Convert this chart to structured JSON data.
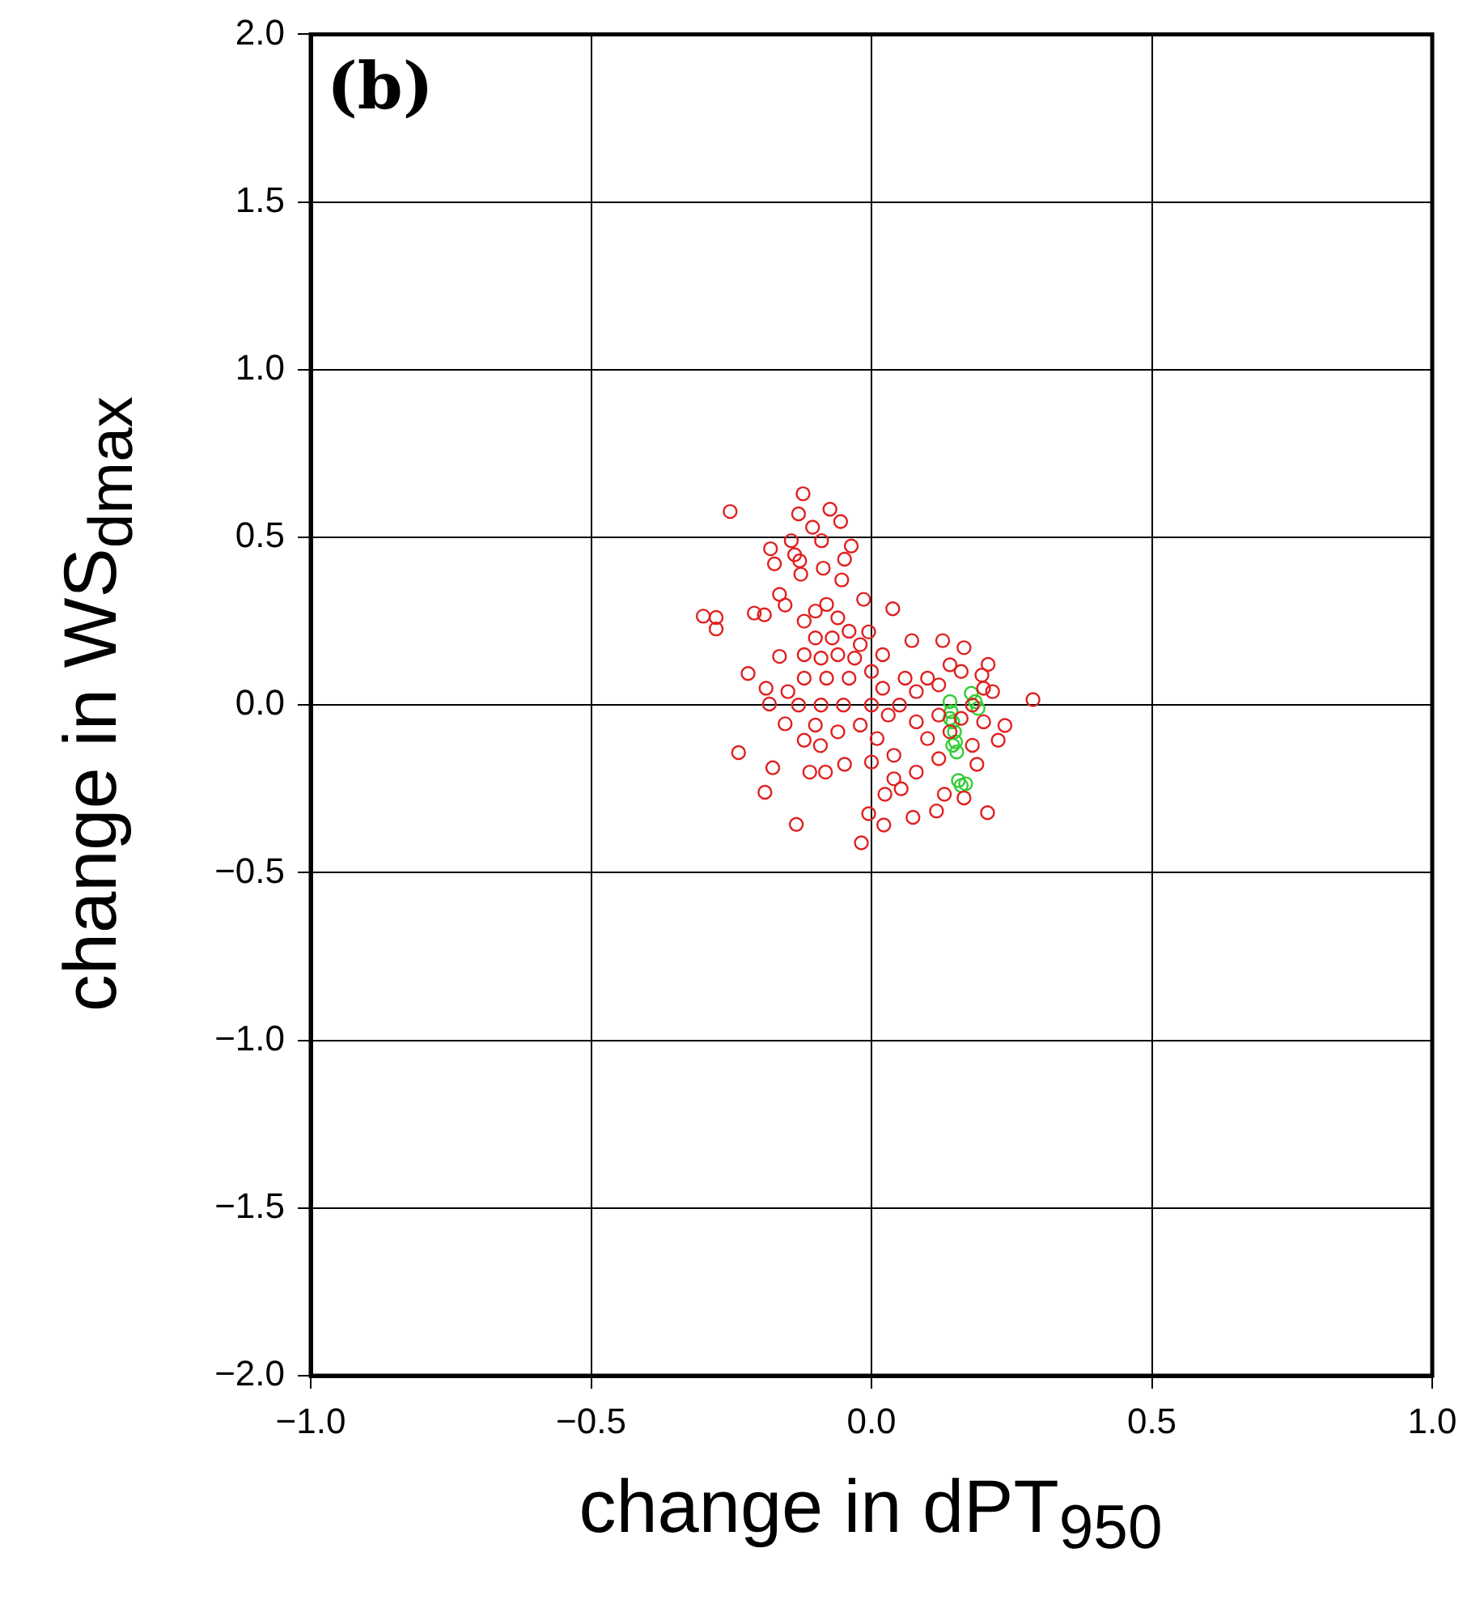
{
  "chart_data": {
    "type": "scatter",
    "xlabel": "change in dPT$_{950}$",
    "ylabel": "change in WS$_{dmax}$",
    "annotations": [
      "(b)"
    ],
    "xlim": [
      -1,
      1
    ],
    "ylim": [
      -2,
      2
    ],
    "xticks": [
      {
        "value": -1,
        "label": "−1.0"
      },
      {
        "value": -0.5,
        "label": "−0.5"
      },
      {
        "value": 0,
        "label": "0.0"
      },
      {
        "value": 0.5,
        "label": "0.5"
      },
      {
        "value": 1,
        "label": "1.0"
      }
    ],
    "yticks": [
      {
        "value": -2,
        "label": "−2.0"
      },
      {
        "value": -1.5,
        "label": "−1.5"
      },
      {
        "value": -1,
        "label": "−1.0"
      },
      {
        "value": -0.5,
        "label": "−0.5"
      },
      {
        "value": 0,
        "label": "0.0"
      },
      {
        "value": 0.5,
        "label": "0.5"
      },
      {
        "value": 1,
        "label": "1.0"
      },
      {
        "value": 1.5,
        "label": "1.5"
      },
      {
        "value": 2,
        "label": "2.0"
      }
    ],
    "grid": true,
    "legend": false,
    "marker": "circle",
    "series": [
      {
        "color": "#e02020",
        "x": [
          -0.122,
          -0.252,
          -0.13,
          -0.074,
          -0.055,
          -0.105,
          -0.143,
          -0.089,
          -0.18,
          -0.036,
          -0.137,
          -0.173,
          -0.128,
          -0.126,
          -0.048,
          -0.086,
          -0.053,
          -0.3,
          -0.277,
          -0.277,
          -0.209,
          -0.191,
          0.038,
          -0.22,
          -0.188,
          -0.182,
          -0.154,
          -0.237,
          -0.176,
          -0.19,
          -0.134,
          -0.018,
          -0.005,
          0.022,
          0.074,
          0.116,
          0.207,
          0.165,
          0.288,
          0.238,
          0.127,
          0.165,
          0.208,
          0.072,
          -0.082,
          -0.11,
          -0.048,
          0.024,
          0.053,
          0.13,
          0.188,
          0.226,
          0.216,
          0.197,
          -0.014,
          -0.005,
          -0.164,
          -0.154,
          -0.164,
          -0.149,
          -0.12,
          -0.091,
          -0.12,
          -0.1,
          -0.08,
          -0.06,
          -0.1,
          -0.07,
          -0.04,
          -0.12,
          -0.09,
          -0.06,
          -0.03,
          -0.12,
          -0.08,
          -0.04,
          -0.13,
          -0.09,
          -0.05,
          -0.1,
          -0.06,
          0,
          0.02,
          0,
          0.03,
          -0.02,
          0.01,
          0.04,
          0,
          0.05,
          0.06,
          0.08,
          0.1,
          0.12,
          0.08,
          0.1,
          0.12,
          0.14,
          0.16,
          0.18,
          0.2,
          0.2,
          0.18,
          0.12,
          0.08,
          0.04,
          0.16,
          0.14,
          -0.02,
          0.02
        ],
        "values": [
          0.63,
          0.577,
          0.57,
          0.584,
          0.547,
          0.53,
          0.49,
          0.49,
          0.466,
          0.474,
          0.448,
          0.421,
          0.43,
          0.39,
          0.435,
          0.408,
          0.373,
          0.265,
          0.261,
          0.227,
          0.274,
          0.269,
          0.287,
          0.094,
          0.05,
          0.003,
          -0.056,
          -0.142,
          -0.187,
          -0.26,
          -0.356,
          -0.411,
          -0.324,
          -0.358,
          -0.335,
          -0.316,
          -0.321,
          -0.277,
          0.016,
          -0.061,
          0.192,
          0.171,
          0.121,
          0.192,
          -0.2,
          -0.2,
          -0.177,
          -0.266,
          -0.25,
          -0.266,
          -0.177,
          -0.105,
          0.04,
          0.089,
          0.315,
          0.218,
          0.33,
          0.298,
          0.145,
          0.04,
          -0.105,
          -0.121,
          0.25,
          0.28,
          0.3,
          0.26,
          0.2,
          0.2,
          0.22,
          0.15,
          0.14,
          0.15,
          0.14,
          0.08,
          0.08,
          0.08,
          0,
          0,
          0,
          -0.06,
          -0.08,
          0.1,
          0.05,
          0,
          -0.03,
          -0.06,
          -0.1,
          -0.15,
          -0.17,
          0,
          0.08,
          0.04,
          0.08,
          0.06,
          -0.05,
          -0.1,
          -0.03,
          -0.08,
          -0.04,
          0,
          -0.05,
          0.05,
          -0.12,
          -0.16,
          -0.2,
          -0.22,
          0.1,
          0.12,
          0.18,
          0.15
        ]
      },
      {
        "color": "#33cc33",
        "x": [
          0.14,
          0.142,
          0.145,
          0.148,
          0.15,
          0.152,
          0.145,
          0.14,
          0.178,
          0.185,
          0.19,
          0.155,
          0.168,
          0.16
        ],
        "values": [
          0.01,
          -0.02,
          -0.05,
          -0.08,
          -0.11,
          -0.14,
          -0.12,
          -0.04,
          0.035,
          0.01,
          -0.01,
          -0.225,
          -0.235,
          -0.24
        ]
      }
    ]
  }
}
